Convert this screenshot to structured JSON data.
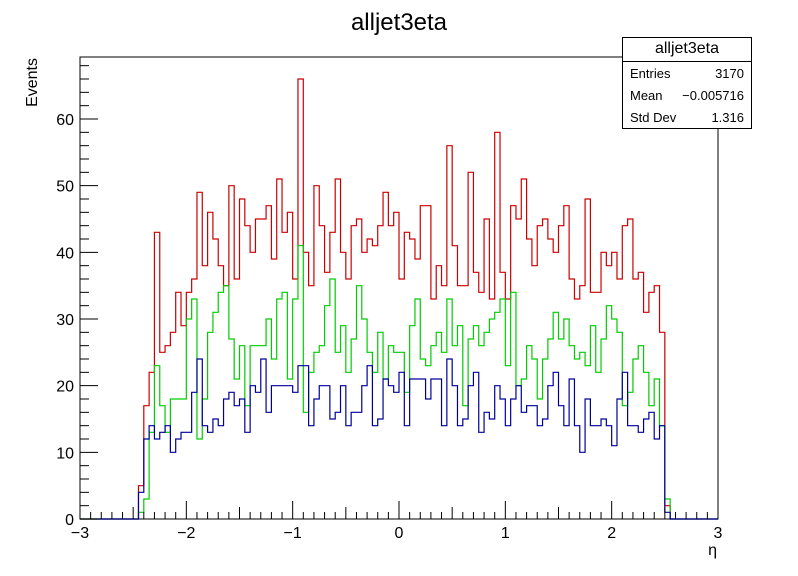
{
  "chart_data": {
    "type": "step-histogram",
    "title": "alljet3eta",
    "xlabel": "η",
    "ylabel": "Events",
    "xlim": [
      -3,
      3
    ],
    "ylim": [
      0,
      69.3
    ],
    "xticks": [
      -3,
      -2,
      -1,
      0,
      1,
      2,
      3
    ],
    "xtick_labels": [
      "−3",
      "−2",
      "−1",
      "0",
      "1",
      "2",
      "3"
    ],
    "yticks": [
      0,
      10,
      20,
      30,
      40,
      50,
      60
    ],
    "yticks_labels": [
      "0",
      "10",
      "20",
      "30",
      "40",
      "50",
      "60"
    ],
    "bin_edges": [
      -2.45,
      2.55
    ],
    "bin_count": 100,
    "series": [
      {
        "color": "#cc0000",
        "values": [
          5,
          17,
          22,
          43,
          25,
          26,
          28,
          34,
          29,
          34,
          36,
          49,
          38,
          46,
          42,
          38,
          35,
          50,
          36,
          48,
          44,
          40,
          45,
          45,
          47,
          39,
          51,
          43,
          46,
          36,
          66,
          40,
          35,
          50,
          44,
          37,
          43,
          51,
          40,
          36,
          44,
          45,
          40,
          42,
          41,
          44,
          49,
          44,
          46,
          36,
          43,
          42,
          39,
          47,
          47,
          33,
          38,
          35,
          56,
          41,
          35,
          35,
          52,
          37,
          34,
          45,
          33,
          58,
          37,
          33,
          47,
          45,
          51,
          42,
          38,
          44,
          45,
          42,
          40,
          44,
          47,
          36,
          33,
          35,
          48,
          34,
          34,
          40,
          38,
          40,
          36,
          44,
          45,
          36,
          37,
          31,
          34,
          35,
          28,
          2
        ]
      },
      {
        "color": "#00cc00",
        "values": [
          1,
          3,
          13,
          23,
          17,
          13,
          18,
          18,
          18,
          30,
          33,
          12,
          18,
          28,
          31,
          34,
          35,
          27,
          21,
          26,
          17,
          26,
          26,
          26,
          30,
          24,
          33,
          34,
          21,
          33,
          41,
          16,
          22,
          25,
          26,
          32,
          36,
          25,
          29,
          22,
          27,
          35,
          30,
          25,
          22,
          28,
          21,
          26,
          25,
          25,
          19,
          29,
          33,
          24,
          23,
          26,
          28,
          25,
          33,
          26,
          29,
          17,
          27,
          29,
          26,
          28,
          30,
          31,
          33,
          23,
          34,
          20,
          21,
          26,
          24,
          18,
          24,
          27,
          31,
          27,
          30,
          26,
          24,
          25,
          23,
          29,
          22,
          27,
          32,
          30,
          28,
          17,
          19,
          24,
          26,
          22,
          17,
          21,
          14,
          3
        ]
      },
      {
        "color": "#000099",
        "values": [
          4,
          12,
          14,
          12,
          13,
          14,
          10,
          12,
          13,
          13,
          19,
          24,
          14,
          13,
          15,
          14,
          18,
          19,
          17,
          18,
          13,
          20,
          19,
          24,
          16,
          20,
          20,
          20,
          20,
          19,
          23,
          23,
          14,
          18,
          20,
          20,
          15,
          16,
          20,
          14,
          16,
          16,
          20,
          23,
          14,
          15,
          21,
          20,
          19,
          22,
          14,
          21,
          21,
          21,
          18,
          21,
          21,
          14,
          24,
          20,
          14,
          15,
          20,
          22,
          13,
          16,
          15,
          20,
          18,
          14,
          18,
          20,
          16,
          17,
          17,
          14,
          15,
          20,
          22,
          17,
          14,
          21,
          14,
          10,
          18,
          14,
          14,
          15,
          14,
          11,
          18,
          22,
          14,
          14,
          13,
          15,
          16,
          12,
          14,
          1
        ]
      }
    ]
  },
  "stats_box": {
    "title": "alljet3eta",
    "rows": [
      {
        "label": "Entries",
        "value": "3170"
      },
      {
        "label": "Mean",
        "value": "−0.005716"
      },
      {
        "label": "Std Dev",
        "value": "1.316"
      }
    ]
  }
}
